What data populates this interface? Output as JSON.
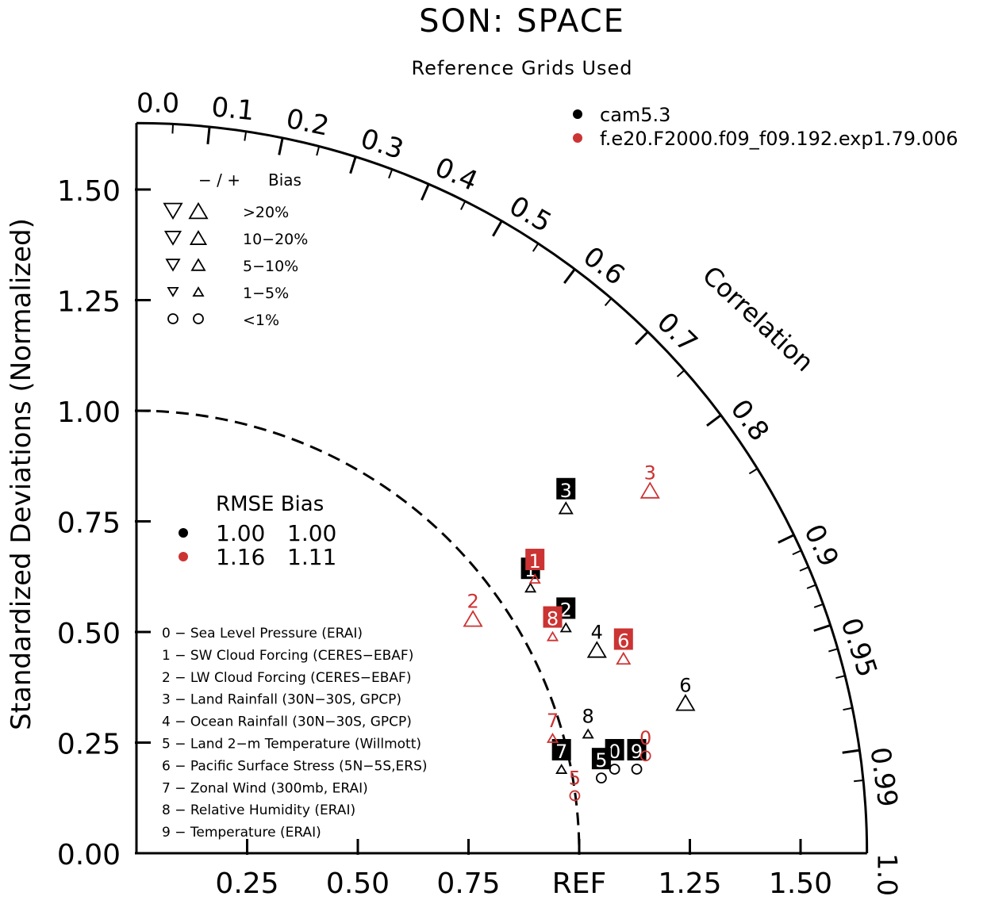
{
  "chart_data": {
    "type": "taylor",
    "title": "SON: SPACE",
    "subtitle": "Reference Grids Used",
    "ylabel": "Standardized Deviations (Normalized)",
    "correlation_label": "Correlation",
    "ref_label": "REF",
    "std_range": [
      0,
      1.65
    ],
    "y_ticks": [
      "0.00",
      "0.25",
      "0.50",
      "0.75",
      "1.00",
      "1.25",
      "1.50"
    ],
    "x_ticks": [
      "0.25",
      "0.50",
      "0.75",
      "REF",
      "1.25",
      "1.50"
    ],
    "correlation_ticks": [
      "0.0",
      "0.1",
      "0.2",
      "0.3",
      "0.4",
      "0.5",
      "0.6",
      "0.7",
      "0.8",
      "0.9",
      "0.95",
      "0.99",
      "1.0"
    ],
    "correlation_values": [
      0.0,
      0.1,
      0.2,
      0.3,
      0.4,
      0.5,
      0.6,
      0.7,
      0.8,
      0.9,
      0.95,
      0.99,
      1.0
    ],
    "colors": {
      "black": "#000000",
      "red": "#cc3333"
    },
    "series": [
      {
        "name": "cam5.3",
        "color": "#000000",
        "points": [
          {
            "label": "0",
            "x": 1.08,
            "y": 0.19,
            "bias": "<1%",
            "labelled_box": true
          },
          {
            "label": "1",
            "x": 0.89,
            "y": 0.6,
            "bias": "1-5%",
            "labelled_box": true
          },
          {
            "label": "2",
            "x": 0.97,
            "y": 0.51,
            "bias": "1-5%",
            "labelled_box": true
          },
          {
            "label": "3",
            "x": 0.97,
            "y": 0.78,
            "bias": "5-10%",
            "labelled_box": true
          },
          {
            "label": "4",
            "x": 1.04,
            "y": 0.46,
            "bias": ">20%",
            "labelled_box": false
          },
          {
            "label": "5",
            "x": 1.05,
            "y": 0.17,
            "bias": "<1%",
            "labelled_box": true
          },
          {
            "label": "6",
            "x": 1.24,
            "y": 0.34,
            "bias": ">20%",
            "labelled_box": false
          },
          {
            "label": "7",
            "x": 0.96,
            "y": 0.19,
            "bias": "1-5%",
            "labelled_box": true
          },
          {
            "label": "8",
            "x": 1.02,
            "y": 0.27,
            "bias": "1-5%",
            "labelled_box": false
          },
          {
            "label": "9",
            "x": 1.13,
            "y": 0.19,
            "bias": "<1%",
            "labelled_box": true
          }
        ]
      },
      {
        "name": "f.e20.F2000.f09_f09.192.exp1.79.006",
        "color": "#cc3333",
        "points": [
          {
            "label": "0",
            "x": 1.15,
            "y": 0.22,
            "bias": "<1%",
            "labelled_box": false
          },
          {
            "label": "1",
            "x": 0.9,
            "y": 0.62,
            "bias": "1-5%",
            "labelled_box": true
          },
          {
            "label": "2",
            "x": 0.76,
            "y": 0.53,
            "bias": ">20%",
            "labelled_box": false
          },
          {
            "label": "3",
            "x": 1.16,
            "y": 0.82,
            "bias": ">20%",
            "labelled_box": false
          },
          {
            "label": "5",
            "x": 0.99,
            "y": 0.13,
            "bias": "<1%",
            "labelled_box": false
          },
          {
            "label": "6",
            "x": 1.1,
            "y": 0.44,
            "bias": "5-10%",
            "labelled_box": true
          },
          {
            "label": "7",
            "x": 0.94,
            "y": 0.26,
            "bias": "1-5%",
            "labelled_box": false
          },
          {
            "label": "8",
            "x": 0.94,
            "y": 0.49,
            "bias": "1-5%",
            "labelled_box": true
          }
        ]
      }
    ],
    "bias_legend": {
      "header_sign": "− / +",
      "header_label": "Bias",
      "rows": [
        ">20%",
        "10−20%",
        "5−10%",
        "1−5%",
        "<1%"
      ]
    },
    "rmse_legend": {
      "header": "RMSE Bias",
      "rows": [
        {
          "rmse": "1.00",
          "bias": "1.00",
          "color": "#000000"
        },
        {
          "rmse": "1.16",
          "bias": "1.11",
          "color": "#cc3333"
        }
      ]
    },
    "case_legend": [
      {
        "label": "cam5.3",
        "color": "#000000"
      },
      {
        "label": "f.e20.F2000.f09_f09.192.exp1.79.006",
        "color": "#cc3333"
      }
    ],
    "variables": [
      "0 − Sea Level Pressure (ERAI)",
      "1 − SW Cloud Forcing (CERES−EBAF)",
      "2 − LW Cloud Forcing (CERES−EBAF)",
      "3 − Land Rainfall (30N−30S, GPCP)",
      "4 − Ocean Rainfall (30N−30S, GPCP)",
      "5 − Land 2−m Temperature (Willmott)",
      "6 − Pacific Surface Stress (5N−5S,ERS)",
      "7 − Zonal Wind (300mb, ERAI)",
      "8 − Relative Humidity (ERAI)",
      "9 − Temperature (ERAI)"
    ]
  }
}
